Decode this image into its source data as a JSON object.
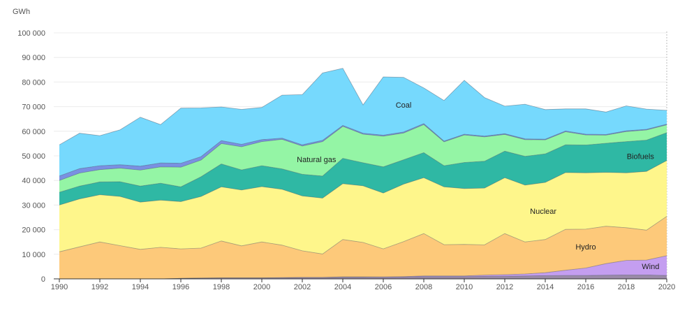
{
  "chart_data": {
    "type": "area",
    "stacked": true,
    "ylabel": "GWh",
    "ylim": [
      0,
      100000
    ],
    "y_ticks": [
      "0",
      "10 000",
      "20 000",
      "30 000",
      "40 000",
      "50 000",
      "60 000",
      "70 000",
      "80 000",
      "90 000",
      "100 000"
    ],
    "x_ticks": [
      "1990",
      "1992",
      "1994",
      "1996",
      "1998",
      "2000",
      "2002",
      "2004",
      "2006",
      "2008",
      "2010",
      "2012",
      "2014",
      "2016",
      "2018",
      "2020"
    ],
    "grid": "horizontal",
    "x": [
      1990,
      1991,
      1992,
      1993,
      1994,
      1995,
      1996,
      1997,
      1998,
      1999,
      2000,
      2001,
      2002,
      2003,
      2004,
      2005,
      2006,
      2007,
      2008,
      2009,
      2010,
      2011,
      2012,
      2013,
      2014,
      2015,
      2016,
      2017,
      2018,
      2019,
      2020
    ],
    "series": [
      {
        "name": "",
        "color": "#9a8aa8",
        "values": [
          0,
          0,
          0,
          0,
          0,
          0,
          200,
          300,
          400,
          400,
          400,
          400,
          500,
          500,
          700,
          700,
          600,
          700,
          900,
          900,
          900,
          1000,
          1100,
          1200,
          1300,
          1400,
          1400,
          1500,
          1600,
          1600,
          1400
        ]
      },
      {
        "name": "Wind",
        "color": "#c49ef0",
        "values": [
          0,
          0,
          0,
          0,
          0,
          0,
          0,
          0,
          0,
          0,
          0,
          100,
          100,
          100,
          100,
          100,
          200,
          200,
          300,
          300,
          300,
          500,
          600,
          800,
          1200,
          2100,
          3000,
          4700,
          5900,
          6000,
          8000
        ]
      },
      {
        "name": "Hydro",
        "color": "#fdc97a",
        "values": [
          11000,
          13000,
          15000,
          13500,
          12000,
          12800,
          12000,
          12200,
          15000,
          13000,
          14600,
          13200,
          10800,
          9500,
          15200,
          14000,
          11400,
          14200,
          17200,
          12700,
          12800,
          12300,
          16700,
          13000,
          13500,
          16600,
          15800,
          15200,
          13300,
          12200,
          16000
        ]
      },
      {
        "name": "Nuclear",
        "color": "#fef68b",
        "values": [
          19000,
          19500,
          19200,
          20000,
          19200,
          19200,
          19200,
          21000,
          22000,
          22700,
          22500,
          22700,
          22300,
          22700,
          22700,
          23000,
          22700,
          23400,
          22700,
          23500,
          22700,
          23100,
          22700,
          23100,
          23200,
          23100,
          22900,
          21900,
          22300,
          23900,
          22700
        ]
      },
      {
        "name": "Biofuels",
        "color": "#2fb8a4",
        "values": [
          5200,
          5200,
          5200,
          6000,
          6500,
          6900,
          6000,
          8000,
          9300,
          8200,
          8500,
          8300,
          8800,
          9000,
          10300,
          9400,
          10600,
          9900,
          10200,
          8600,
          10600,
          10900,
          10800,
          11700,
          11600,
          11300,
          11300,
          11800,
          12700,
          12700,
          11300
        ]
      },
      {
        "name": "Natural gas",
        "color": "#94f5a5",
        "values": [
          4800,
          5300,
          5000,
          5500,
          6500,
          6600,
          8000,
          6800,
          8300,
          9400,
          9800,
          12000,
          11500,
          14000,
          13000,
          11600,
          12500,
          10900,
          11400,
          9700,
          11200,
          9900,
          6800,
          6800,
          5700,
          5300,
          4100,
          3300,
          4100,
          4100,
          3200
        ]
      },
      {
        "name": "",
        "color": "#7a90e2",
        "values": [
          1800,
          1800,
          1600,
          1400,
          1600,
          1600,
          1600,
          1400,
          1200,
          1000,
          800,
          500,
          500,
          500,
          400,
          400,
          400,
          400,
          400,
          300,
          300,
          300,
          300,
          300,
          300,
          300,
          300,
          300,
          300,
          300,
          300
        ]
      },
      {
        "name": "Coal",
        "color": "#76d9fd",
        "values": [
          12700,
          14400,
          12200,
          14200,
          19900,
          15600,
          22400,
          19800,
          13700,
          14200,
          13100,
          17500,
          20400,
          27400,
          23200,
          11500,
          23700,
          22200,
          14500,
          16500,
          21900,
          15700,
          11200,
          14100,
          12000,
          9000,
          10300,
          9100,
          10100,
          8200,
          5600
        ]
      }
    ],
    "labels": [
      "Coal",
      "Natural gas",
      "Biofuels",
      "Nuclear",
      "Hydro",
      "Wind"
    ]
  }
}
